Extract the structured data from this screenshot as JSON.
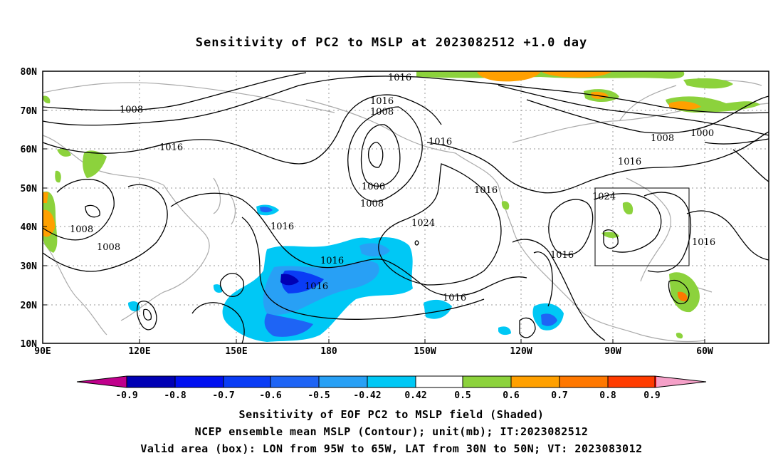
{
  "title": "Sensitivity of PC2 to MSLP at 2023082512 +1.0 day",
  "map": {
    "lat_labels": [
      "80N",
      "70N",
      "60N",
      "50N",
      "40N",
      "30N",
      "20N",
      "10N"
    ],
    "lon_labels": [
      "90E",
      "120E",
      "150E",
      "180",
      "150W",
      "120W",
      "90W",
      "60W"
    ],
    "contour_labels": [
      "1016",
      "1016",
      "1008",
      "1008",
      "1016",
      "1016",
      "1000",
      "1008",
      "1008",
      "1008",
      "1016",
      "1016",
      "1024",
      "1016",
      "1016",
      "1016",
      "1024",
      "1016",
      "1016",
      "1008",
      "1000",
      "1016"
    ],
    "valid_box": {
      "lon_min": "95W",
      "lon_max": "65W",
      "lat_min": "30N",
      "lat_max": "50N"
    }
  },
  "colorbar": {
    "labels": [
      "-0.9",
      "-0.8",
      "-0.7",
      "-0.6",
      "-0.5",
      "-0.42",
      "0.42",
      "0.5",
      "0.6",
      "0.7",
      "0.8",
      "0.9"
    ],
    "colors": [
      "#c0008c",
      "#0000b4",
      "#0010f0",
      "#0a3cf5",
      "#1e64f5",
      "#28a0f5",
      "#00c8f5",
      "#ffffff",
      "#8cd23c",
      "#ffa000",
      "#ff7800",
      "#ff3c00",
      "#ff0000",
      "#f5a0c8"
    ]
  },
  "captions": {
    "line1": "Sensitivity of EOF PC2 to MSLP field (Shaded)",
    "line2": "NCEP ensemble mean MSLP (Contour); unit(mb); IT:2023082512",
    "line3": "Valid area (box): LON from 95W to 65W, LAT from 30N to 50N; VT: 2023083012"
  }
}
